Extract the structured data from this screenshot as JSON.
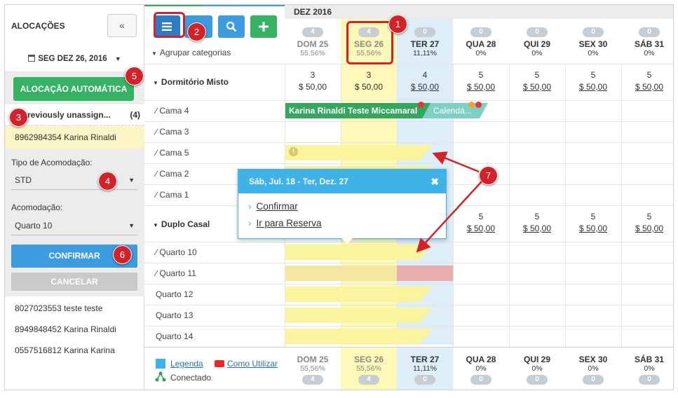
{
  "sidebar": {
    "title": "ALOCAÇÕES",
    "collapse_label": "«",
    "date_label": "SEG DEZ 26, 2016",
    "auto_button": "ALOCAÇÃO AUTOMÁTICA",
    "unassigned_label": "Previously unassign...",
    "unassigned_count": "(4)",
    "selected_reservation": "8962984354 Karina Rinaldi",
    "tipo_label": "Tipo de Acomodação:",
    "tipo_value": "STD",
    "acomodacao_label": "Acomodação:",
    "acomodacao_value": "Quarto 10",
    "confirm_button": "CONFIRMAR",
    "cancel_button": "CANCELAR",
    "reservations": [
      "8027023553 teste teste",
      "8949848452 Karina Rinaldi",
      "0557516812 Karina Karina"
    ]
  },
  "toolbar": {
    "group_categories": "Agrupar categorias",
    "menu_icon": "menu-icon",
    "search_icon": "search-icon",
    "add_icon": "plus-icon"
  },
  "calendar": {
    "month": "DEZ 2016",
    "days": [
      {
        "name": "DOM 25",
        "pct": "55,56%",
        "count": "4"
      },
      {
        "name": "SEG 26",
        "pct": "55,56%",
        "count": "4"
      },
      {
        "name": "TER 27",
        "pct": "11,11%",
        "count": "0"
      },
      {
        "name": "QUA 28",
        "pct": "0%",
        "count": "0"
      },
      {
        "name": "QUI 29",
        "pct": "0%",
        "count": "0"
      },
      {
        "name": "SEX 30",
        "pct": "0%",
        "count": "0"
      },
      {
        "name": "SÁB 31",
        "pct": "0%",
        "count": "0"
      }
    ],
    "groups": [
      {
        "name": "Dormitório Misto",
        "avail": [
          "3",
          "3",
          "4",
          "5",
          "5",
          "5",
          "5"
        ],
        "prices": [
          "$ 50,00",
          "$ 50,00",
          "$ 50,00",
          "$ 50,00",
          "$ 50,00",
          "$ 50,00",
          "$ 50,00"
        ]
      },
      {
        "name": "Duplo Casal",
        "avail": [
          "",
          "",
          "",
          "5",
          "5",
          "5",
          "5"
        ],
        "prices": [
          "",
          "",
          "",
          "$ 50,00",
          "$ 50,00",
          "$ 50,00",
          "$ 50,00"
        ]
      }
    ],
    "rooms_dorm": [
      "Cama 4",
      "Cama 3",
      "Cama 5",
      "Cama 2",
      "Cama 1"
    ],
    "rooms_duplo": [
      "Quarto 10",
      "Quarto 11",
      "Quarto 12",
      "Quarto 13",
      "Quarto 14"
    ],
    "booking_1": "Karina Rinaldi Teste Miccamaral",
    "booking_2": "Calendá..."
  },
  "popup": {
    "title": "Sáb, Jul. 18 - Ter, Dez. 27",
    "close": "✖",
    "link_confirm": "Confirmar",
    "link_go": "Ir para Reserva"
  },
  "footer": {
    "legend": "Legenda",
    "how_to": "Como Utilizar",
    "status": "Conectado"
  },
  "annotations": [
    "1",
    "2",
    "3",
    "4",
    "5",
    "6",
    "7"
  ],
  "colors": {
    "accent_blue": "#3d9be0",
    "green": "#37b265",
    "today_col": "#deeef8",
    "selected_col": "#fdf9b8",
    "highlight_red": "#d3232a",
    "booking_green": "#34a65f",
    "booking_teal": "#7fcfc4"
  }
}
